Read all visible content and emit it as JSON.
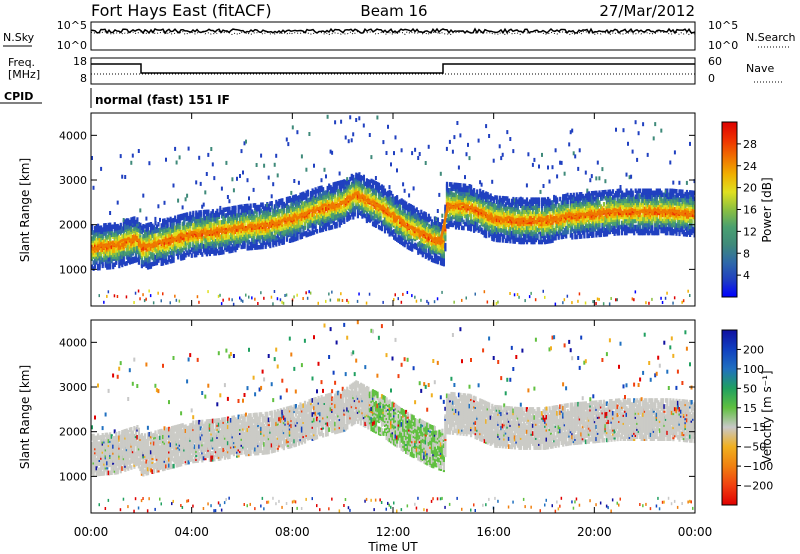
{
  "header": {
    "station": "Fort Hays East (fitACF)",
    "beam": "Beam 16",
    "date": "27/Mar/2012"
  },
  "strip_labels": {
    "nsky": "N.Sky",
    "nsearch": "N.Search",
    "freq_line1": "Freq.",
    "freq_line2": "[MHz]",
    "nave": "Nave",
    "cpid": "CPID",
    "cpid_value": "normal (fast) 151 IF"
  },
  "strip_ticks": {
    "noise_left": [
      "10^5",
      "10^0"
    ],
    "noise_right": [
      "10^5",
      "10^0"
    ],
    "freq_left": [
      "18",
      "8"
    ],
    "freq_right": [
      "60",
      "0"
    ]
  },
  "colors": {
    "power_scale": [
      "#0000ff",
      "#2040c0",
      "#2f6aa8",
      "#3f8a7a",
      "#4aa070",
      "#8cc040",
      "#e0e020",
      "#f0b000",
      "#f07000",
      "#ee3000",
      "#dd0000"
    ],
    "velocity_scale": [
      "#1010a0",
      "#1040c0",
      "#2070c0",
      "#20a060",
      "#60c040",
      "#c8c8c8",
      "#f0b020",
      "#f08010",
      "#f04010",
      "#e00000"
    ],
    "power_ridge": "#ee7a00",
    "velocity_fill": "#cbcbc6"
  },
  "chart_data": [
    {
      "type": "heatmap",
      "panel": "power",
      "ylabel": "Slant Range [km]",
      "xlabel": "",
      "xlim_hours": [
        0,
        24
      ],
      "ylim_km": [
        180,
        4500
      ],
      "yticks": [
        "1000",
        "2000",
        "3000",
        "4000"
      ],
      "colorbar_label": "Power [dB]",
      "colorbar_ticks": [
        "4",
        "8",
        "12",
        "16",
        "20",
        "24",
        "28"
      ],
      "band_center_km": [
        [
          0.0,
          1500
        ],
        [
          1.0,
          1550
        ],
        [
          1.8,
          1700
        ],
        [
          2.0,
          1500
        ],
        [
          3.0,
          1650
        ],
        [
          4.0,
          1800
        ],
        [
          5.0,
          1850
        ],
        [
          6.0,
          1950
        ],
        [
          7.0,
          2000
        ],
        [
          8.0,
          2150
        ],
        [
          9.0,
          2350
        ],
        [
          10.0,
          2500
        ],
        [
          10.5,
          2700
        ],
        [
          11.5,
          2400
        ],
        [
          12.5,
          2000
        ],
        [
          13.5,
          1700
        ],
        [
          14.0,
          1600
        ],
        [
          14.1,
          2450
        ],
        [
          15.0,
          2400
        ],
        [
          16.0,
          2150
        ],
        [
          17.0,
          2100
        ],
        [
          18.0,
          2100
        ],
        [
          19.0,
          2200
        ],
        [
          20.0,
          2250
        ],
        [
          21.0,
          2300
        ],
        [
          22.0,
          2300
        ],
        [
          23.0,
          2300
        ],
        [
          24.0,
          2250
        ]
      ],
      "band_halfwidth_km": 300,
      "ridge_power_db": 24
    },
    {
      "type": "heatmap",
      "panel": "velocity",
      "ylabel": "Slant Range [km]",
      "xlabel": "Time UT",
      "xlim_hours": [
        0,
        24
      ],
      "ylim_km": [
        180,
        4500
      ],
      "yticks": [
        "1000",
        "2000",
        "3000",
        "4000"
      ],
      "colorbar_label": "Velocity [m s⁻¹]",
      "colorbar_ticks": [
        "200",
        "100",
        "50",
        "15",
        "−15",
        "−50",
        "−100",
        "−200"
      ],
      "xticks": [
        "00:00",
        "04:00",
        "08:00",
        "12:00",
        "16:00",
        "20:00",
        "00:00"
      ]
    }
  ]
}
